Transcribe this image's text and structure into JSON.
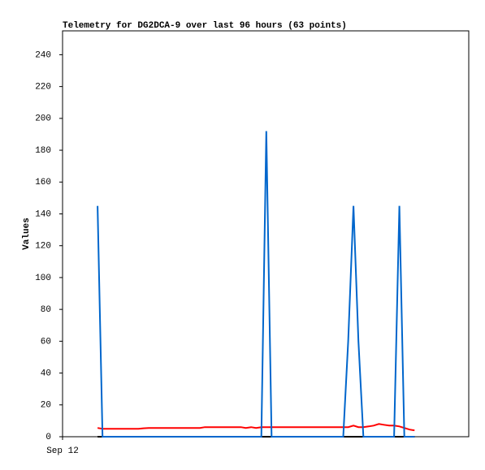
{
  "chart_data": {
    "type": "line",
    "title": "Telemetry for DG2DCA-9 over last 96 hours (63 points)",
    "y_label": "Values",
    "x": [
      10.6,
      12.1,
      13.7,
      15.2,
      16.8,
      18.3,
      19.9,
      21.4,
      23.0,
      24.5,
      26.1,
      27.6,
      29.2,
      30.7,
      32.3,
      33.8,
      35.4,
      36.9,
      38.5,
      40.0,
      41.6,
      43.1,
      44.7,
      46.2,
      47.8,
      49.3,
      50.9,
      52.4,
      54.0,
      55.5,
      57.1,
      58.6,
      60.2,
      61.7,
      63.3,
      64.8,
      66.4,
      67.9,
      69.5,
      71.0,
      72.6,
      74.1,
      75.7,
      77.2,
      78.8,
      80.3,
      81.9,
      83.4,
      85.0,
      86.5,
      88.1,
      89.6,
      91.1,
      92.7,
      94.2,
      95.8,
      97.3,
      98.9,
      100.4,
      102.0,
      103.5,
      105.1,
      106.6
    ],
    "series": [
      {
        "color": "#000000",
        "values": [
          0,
          0,
          0,
          0,
          0,
          0,
          0,
          0,
          0,
          0,
          0,
          0,
          0,
          0,
          0,
          0,
          0,
          0,
          0,
          0,
          0,
          0,
          0,
          0,
          0,
          0,
          0,
          0,
          0,
          0,
          0,
          0,
          0,
          0,
          0,
          0,
          0,
          0,
          0,
          0,
          0,
          0,
          0,
          0,
          0,
          0,
          0,
          0,
          0,
          0,
          0,
          0,
          0,
          0,
          0,
          0,
          0,
          0,
          0,
          0,
          0,
          0,
          0
        ]
      },
      {
        "color": "#ff0000",
        "values": [
          5.5,
          5,
          5,
          5,
          5,
          5,
          5,
          5,
          5,
          5.3,
          5.5,
          5.5,
          5.5,
          5.5,
          5.5,
          5.5,
          5.5,
          5.5,
          5.5,
          5.5,
          5.5,
          6,
          6,
          6,
          6,
          6,
          6,
          6,
          6,
          5.5,
          6,
          5.5,
          6,
          6,
          6,
          6,
          6,
          6,
          6,
          6,
          6,
          6,
          6,
          6,
          6,
          6,
          6,
          6,
          6,
          6,
          7,
          6,
          6,
          6.5,
          7,
          8,
          7.5,
          7,
          7,
          6.5,
          5.5,
          4.5,
          4
        ]
      },
      {
        "color": "#0066cc",
        "values": [
          145,
          0,
          0,
          0,
          0,
          0,
          0,
          0,
          0,
          0,
          0,
          0,
          0,
          0,
          0,
          0,
          0,
          0,
          0,
          0,
          0,
          0,
          0,
          0,
          0,
          0,
          0,
          0,
          0,
          0,
          0,
          0,
          0,
          192,
          0,
          0,
          0,
          0,
          0,
          0,
          0,
          0,
          0,
          0,
          0,
          0,
          0,
          0,
          0,
          60,
          145,
          60,
          0,
          0,
          0,
          0,
          0,
          0,
          0,
          145,
          0,
          0,
          0
        ]
      }
    ],
    "xlim": [
      0,
      123
    ],
    "xticks": [
      {
        "value": 0,
        "label": "Sep 12"
      }
    ],
    "ylim": [
      0,
      255
    ],
    "yticks": [
      0,
      20,
      40,
      60,
      80,
      100,
      120,
      140,
      160,
      180,
      200,
      220,
      240
    ],
    "grid": false
  }
}
